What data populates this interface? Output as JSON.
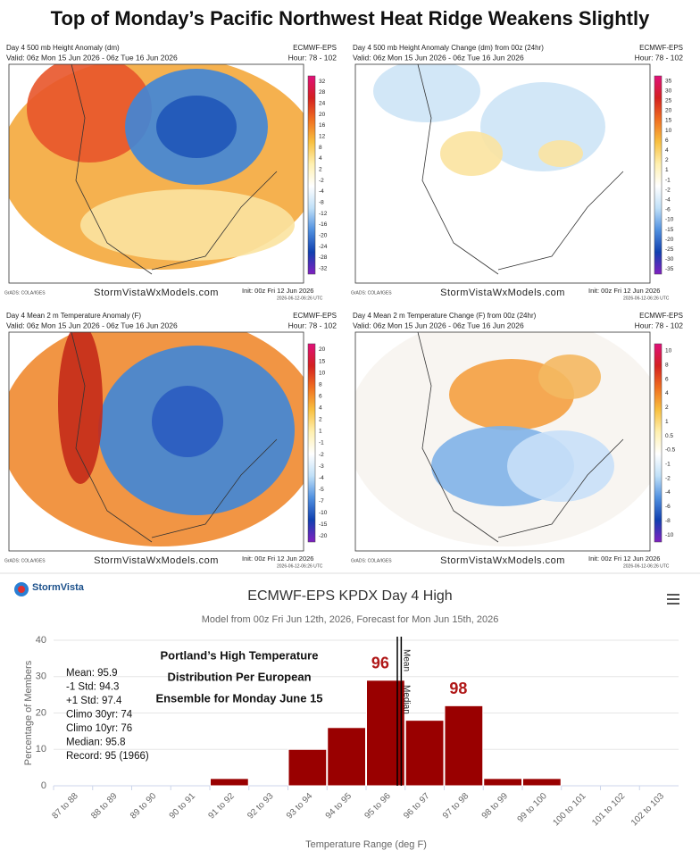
{
  "title": "Top of Monday’s Pacific Northwest Heat Ridge Weakens Slightly",
  "maps": [
    {
      "header": "Day 4 500 mb Height Anomaly (dm)",
      "model": "ECMWF-EPS",
      "valid": "Valid: 06z Mon 15 Jun 2026 - 06z Tue 16 Jun 2026",
      "hour": "Hour: 78 - 102",
      "colorbar": [
        32,
        28,
        24,
        20,
        16,
        12,
        8,
        4,
        2,
        -2,
        -4,
        -8,
        -12,
        -16,
        -20,
        -24,
        -28,
        -32
      ],
      "palette": [
        "#e0107a",
        "#d42020",
        "#f07020",
        "#f8c040",
        "#fff0b0",
        "#ffffff",
        "#c0e0f8",
        "#5090e0",
        "#1040b0",
        "#8020c0"
      ],
      "footer": "StormVistaWxModels.com",
      "init": "Init: 00z Fri 12 Jun 2026",
      "credit": "GrADS: COLA/IGES",
      "stamp": "2026-06-12-06:26 UTC"
    },
    {
      "header": "Day 4 500 mb Height Anomaly Change (dm) from 00z (24hr)",
      "model": "ECMWF-EPS",
      "valid": "Valid: 06z Mon 15 Jun 2026 - 06z Tue 16 Jun 2026",
      "hour": "Hour: 78 - 102",
      "colorbar": [
        35,
        30,
        25,
        20,
        15,
        10,
        6,
        4,
        2,
        1,
        -1,
        -2,
        -4,
        -6,
        -10,
        -15,
        -20,
        -25,
        -30,
        -35
      ],
      "palette": [
        "#e0107a",
        "#d42020",
        "#f07020",
        "#f8c040",
        "#fff0b0",
        "#ffffff",
        "#c0e0f8",
        "#5090e0",
        "#1040b0",
        "#8020c0"
      ],
      "footer": "StormVistaWxModels.com",
      "init": "Init: 00z Fri 12 Jun 2026",
      "credit": "GrADS: COLA/IGES",
      "stamp": "2026-06-12-06:26 UTC"
    },
    {
      "header": "Day 4 Mean 2 m Temperature Anomaly (F)",
      "model": "ECMWF-EPS",
      "valid": "Valid: 06z Mon 15 Jun 2026 - 06z Tue 16 Jun 2026",
      "hour": "Hour: 78 - 102",
      "colorbar": [
        20,
        15,
        10,
        8,
        6,
        4,
        2,
        1,
        -1,
        -2,
        -3,
        -4,
        -5,
        -7,
        -10,
        -15,
        -20
      ],
      "palette": [
        "#e0107a",
        "#d42020",
        "#f07020",
        "#f8c040",
        "#fff0b0",
        "#ffffff",
        "#c0e0f8",
        "#5090e0",
        "#1040b0",
        "#8020c0"
      ],
      "footer": "StormVistaWxModels.com",
      "init": "Init: 00z Fri 12 Jun 2026",
      "credit": "GrADS: COLA/IGES",
      "stamp": "2026-06-12-06:26 UTC"
    },
    {
      "header": "Day 4 Mean 2 m Temperature Change (F) from 00z (24hr)",
      "model": "ECMWF-EPS",
      "valid": "Valid: 06z Mon 15 Jun 2026 - 06z Tue 16 Jun 2026",
      "hour": "Hour: 78 - 102",
      "colorbar": [
        10,
        8,
        6,
        4,
        2,
        1,
        0.5,
        -0.5,
        -1,
        -2,
        -4,
        -6,
        -8,
        -10
      ],
      "palette": [
        "#e0107a",
        "#d42020",
        "#f07020",
        "#f8c040",
        "#fff0b0",
        "#ffffff",
        "#c0e0f8",
        "#5090e0",
        "#1040b0",
        "#8020c0"
      ],
      "footer": "StormVistaWxModels.com",
      "init": "Init: 00z Fri 12 Jun 2026",
      "credit": "GrADS: COLA/IGES",
      "stamp": "2026-06-12-06:26 UTC"
    }
  ],
  "logo": "StormVista",
  "chart_data": {
    "type": "histogram",
    "title": "ECMWF-EPS KPDX Day 4 High",
    "subtitle": "Model from 00z Fri Jun 12th, 2026, Forecast for Mon Jun 15th, 2026",
    "x_label": "Temperature Range (deg F)",
    "y_label": "Percentage of Members",
    "bins": [
      87,
      88,
      89,
      90,
      91,
      92,
      93,
      94,
      95,
      96,
      97,
      98,
      99,
      100,
      101,
      102,
      103
    ],
    "categories": [
      "87 to 88",
      "88 to 89",
      "89 to 90",
      "90 to 91",
      "91 to 92",
      "92 to 93",
      "93 to 94",
      "94 to 95",
      "95 to 96",
      "96 to 97",
      "97 to 98",
      "98 to 99",
      "99 to 100",
      "100 to 101",
      "101 to 102",
      "102 to 103"
    ],
    "values": [
      0,
      0,
      0,
      0,
      2,
      0,
      10,
      16,
      29,
      18,
      22,
      2,
      2,
      0,
      0,
      0
    ],
    "color": "#990000",
    "xlim": [
      87,
      103
    ],
    "ylim": [
      0,
      40
    ],
    "yticks": [
      0,
      10,
      20,
      30,
      40
    ],
    "grid": true,
    "lines": [
      {
        "name": "Mean",
        "value": 95.9
      },
      {
        "name": "Median",
        "value": 95.8
      }
    ],
    "stats": [
      "Mean: 95.9",
      "-1 Std: 94.3",
      "+1 Std: 97.4",
      "Climo 30yr: 74",
      "Climo 10yr: 76",
      "Median: 95.8",
      "Record: 95 (1966)"
    ],
    "annotation": [
      "Portland’s High Temperature",
      "Distribution Per European",
      "Ensemble for Monday June 15"
    ],
    "bar_labels": [
      {
        "text": "96",
        "bin": 8
      },
      {
        "text": "98",
        "bin": 10
      }
    ]
  }
}
